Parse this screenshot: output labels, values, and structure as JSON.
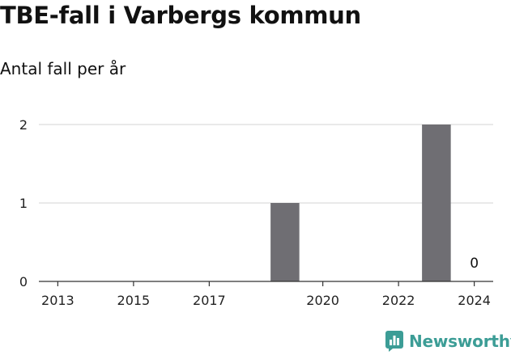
{
  "title": "TBE-fall i Varbergs kommun",
  "subtitle": "Antal fall per år",
  "brand": {
    "name": "Newsworthy",
    "icon": "newsworthy-logo-icon",
    "color": "#3c9d96"
  },
  "chart_data": {
    "type": "bar",
    "title": "TBE-fall i Varbergs kommun",
    "subtitle": "Antal fall per år",
    "categories": [
      "2013",
      "2014",
      "2015",
      "2016",
      "2017",
      "2018",
      "2019",
      "2020",
      "2021",
      "2022",
      "2023",
      "2024"
    ],
    "values": [
      0,
      0,
      0,
      0,
      0,
      0,
      1,
      0,
      0,
      0,
      2,
      0
    ],
    "x_tick_labels": [
      "2013",
      "2015",
      "2017",
      "2020",
      "2022",
      "2024"
    ],
    "y_ticks": [
      0,
      1,
      2
    ],
    "ylim": [
      0,
      2
    ],
    "grid": true,
    "bar_color": "#6f6e73",
    "annotations": [
      {
        "category": "2024",
        "text": "0"
      }
    ]
  }
}
